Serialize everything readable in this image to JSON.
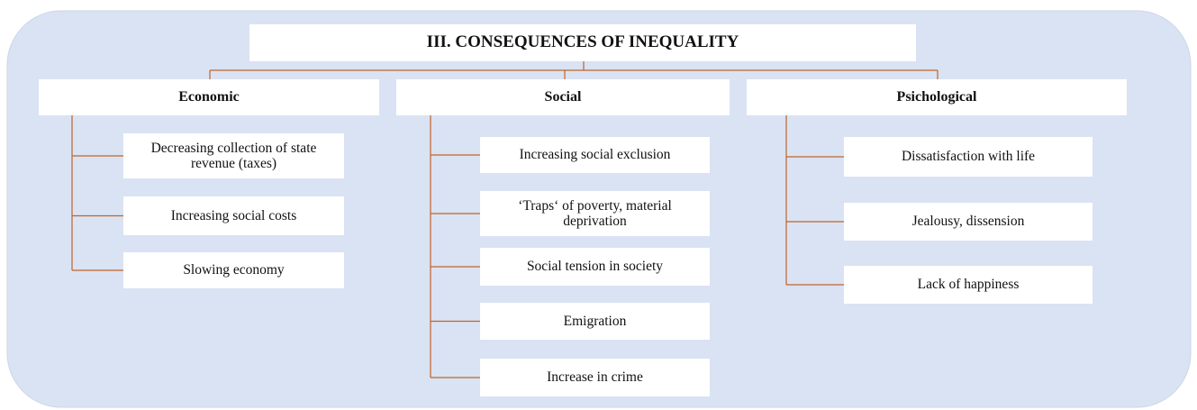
{
  "title": "III. CONSEQUENCES OF INEQUALITY",
  "columns": [
    {
      "heading": "Economic",
      "items": [
        "Decreasing collection of state revenue (taxes)",
        "Increasing social costs",
        "Slowing economy"
      ]
    },
    {
      "heading": "Social",
      "items": [
        "Increasing social exclusion",
        "‘Traps‘ of poverty, material deprivation",
        "Social tension in society",
        "Emigration",
        "Increase in crime"
      ]
    },
    {
      "heading": "Psichological",
      "items": [
        "Dissatisfaction with life",
        "Jealousy, dissension",
        "Lack of happiness"
      ]
    }
  ]
}
